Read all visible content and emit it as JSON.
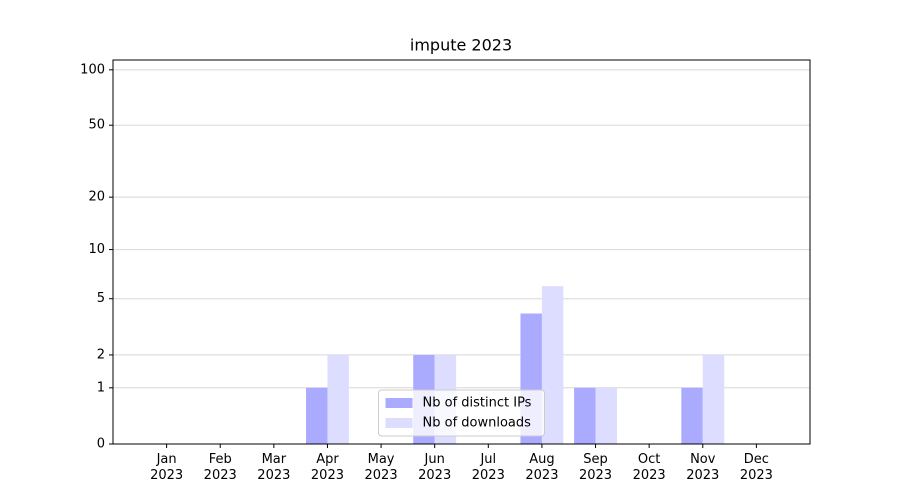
{
  "chart_data": {
    "type": "bar",
    "title": "impute 2023",
    "categories": [
      "Jan\n2023",
      "Feb\n2023",
      "Mar\n2023",
      "Apr\n2023",
      "May\n2023",
      "Jun\n2023",
      "Jul\n2023",
      "Aug\n2023",
      "Sep\n2023",
      "Oct\n2023",
      "Nov\n2023",
      "Dec\n2023"
    ],
    "series": [
      {
        "name": "Nb of distinct IPs",
        "color": "#aaaaff",
        "values": [
          0,
          0,
          0,
          1,
          0,
          2,
          0,
          4,
          1,
          0,
          1,
          0
        ]
      },
      {
        "name": "Nb of downloads",
        "color": "#ddddff",
        "values": [
          0,
          0,
          0,
          2,
          0,
          2,
          0,
          6,
          1,
          0,
          2,
          0
        ]
      }
    ],
    "yscale": "log1p",
    "ylim": [
      0,
      113
    ],
    "yticks": [
      0,
      1,
      2,
      5,
      10,
      20,
      50,
      100
    ],
    "grid": true,
    "legend": "lower center"
  }
}
